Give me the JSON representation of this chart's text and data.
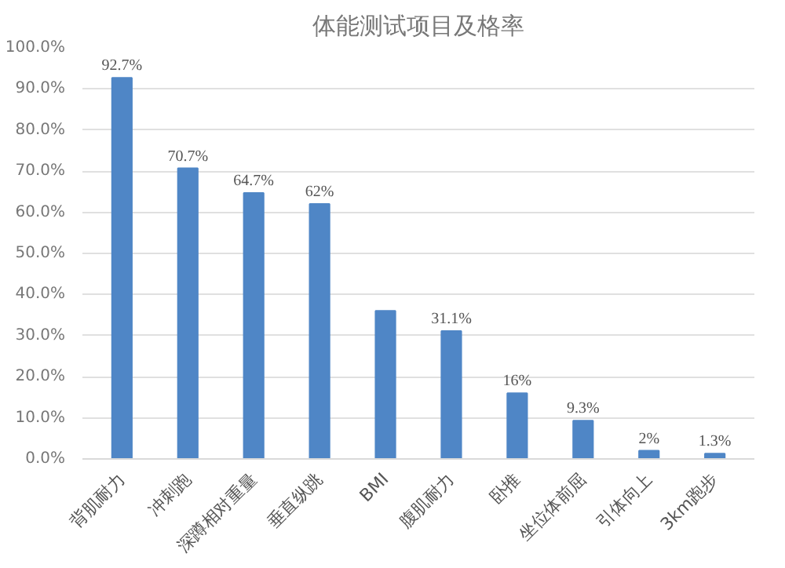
{
  "chart_data": {
    "type": "bar",
    "title": "体能测试项目及格率",
    "categories": [
      "背肌耐力",
      "冲刺跑",
      "深蹲相对重量",
      "垂直纵跳",
      "BMI",
      "腹肌耐力",
      "卧推",
      "坐位体前屈",
      "引体向上",
      "3km跑步"
    ],
    "values": [
      92.7,
      70.7,
      64.7,
      62,
      36,
      31.1,
      16,
      9.3,
      2,
      1.3
    ],
    "value_labels": [
      "92.7%",
      "70.7%",
      "64.7%",
      "62%",
      null,
      "31.1%",
      "16%",
      "9.3%",
      "2%",
      "1.3%"
    ],
    "color": "#4f86c6",
    "ylim": [
      0,
      100
    ],
    "yticks": [
      {
        "value": 0,
        "label": "0.0%"
      },
      {
        "value": 10,
        "label": "10.0%"
      },
      {
        "value": 20,
        "label": "20.0%"
      },
      {
        "value": 30,
        "label": "30.0%"
      },
      {
        "value": 40,
        "label": "40.0%"
      },
      {
        "value": 50,
        "label": "50.0%"
      },
      {
        "value": 60,
        "label": "60.0%"
      },
      {
        "value": 70,
        "label": "70.0%"
      },
      {
        "value": 80,
        "label": "80.0%"
      },
      {
        "value": 90,
        "label": "90.0%"
      },
      {
        "value": 100,
        "label": "100.0%"
      }
    ],
    "grid": "y"
  }
}
